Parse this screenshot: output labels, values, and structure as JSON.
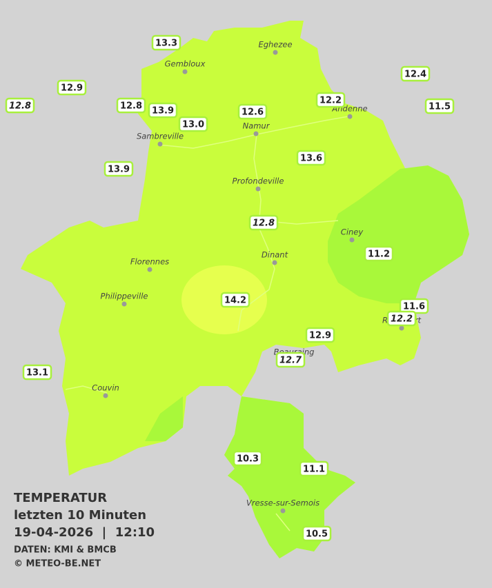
{
  "title": [
    "TEMPERATUR",
    "letzten 10 Minuten",
    "19-04-2026  |  12:10"
  ],
  "credits": [
    "DATEN: KMI & BMCB",
    "© METEO-BE.NET"
  ],
  "cities": [
    "Eghezee",
    "Gembloux",
    "Andenne",
    "Namur",
    "Sambreville",
    "Profondeville",
    "Ciney",
    "Dinant",
    "Florennes",
    "Philippeville",
    "Rochefort",
    "Beauraing",
    "Couvin",
    "Vresse-sur-Semois"
  ],
  "stations": [
    {
      "text": "13.3",
      "italic": false
    },
    {
      "text": "12.4",
      "italic": false
    },
    {
      "text": "12.9",
      "italic": false
    },
    {
      "text": "12.8",
      "italic": true
    },
    {
      "text": "12.8",
      "italic": false
    },
    {
      "text": "13.9",
      "italic": false
    },
    {
      "text": "12.2",
      "italic": false
    },
    {
      "text": "11.5",
      "italic": false
    },
    {
      "text": "12.6",
      "italic": false
    },
    {
      "text": "13.0",
      "italic": false
    },
    {
      "text": "13.6",
      "italic": false
    },
    {
      "text": "13.9",
      "italic": false
    },
    {
      "text": "12.8",
      "italic": true
    },
    {
      "text": "11.2",
      "italic": false
    },
    {
      "text": "14.2",
      "italic": false
    },
    {
      "text": "11.6",
      "italic": false
    },
    {
      "text": "12.2",
      "italic": true
    },
    {
      "text": "12.9",
      "italic": false
    },
    {
      "text": "12.7",
      "italic": true
    },
    {
      "text": "13.1",
      "italic": false
    },
    {
      "text": "10.3",
      "italic": false
    },
    {
      "text": "11.1",
      "italic": false
    },
    {
      "text": "10.5",
      "italic": false
    }
  ]
}
